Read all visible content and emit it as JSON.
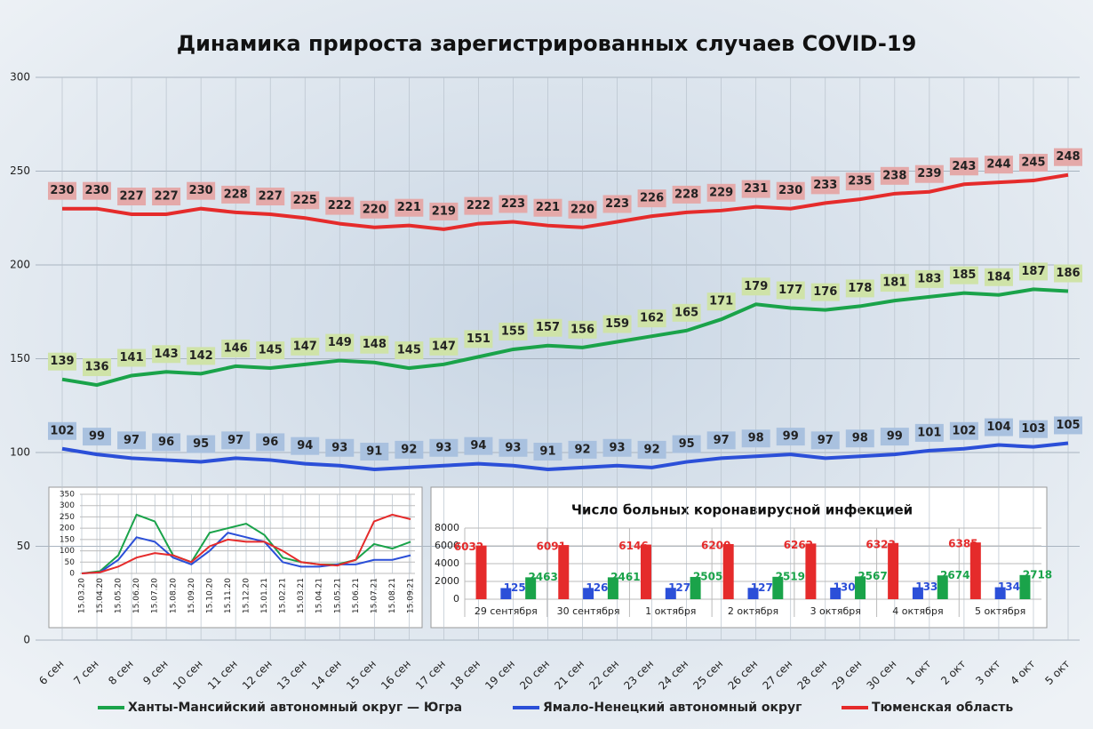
{
  "chart_data": [
    {
      "type": "line",
      "title": "Динамика прироста зарегистрированных случаев COVID-19",
      "categories": [
        "6 сен",
        "7 сен",
        "8 сен",
        "9 сен",
        "10 сен",
        "11 сен",
        "12 сен",
        "13 сен",
        "14 сен",
        "15 сен",
        "16 сен",
        "17 сен",
        "18 сен",
        "19 сен",
        "20 сен",
        "21 сен",
        "22 сен",
        "23 сен",
        "24 сен",
        "25 сен",
        "26 сен",
        "27 сен",
        "28 сен",
        "29 сен",
        "30 сен",
        "1 окт",
        "2 окт",
        "3 окт",
        "4 окт",
        "5 окт"
      ],
      "series": [
        {
          "name": "Ханты-Мансийский автономный округ — Югра",
          "color": "#1aa34a",
          "label_fill": "#cfe3a8",
          "values": [
            139,
            136,
            141,
            143,
            142,
            146,
            145,
            147,
            149,
            148,
            145,
            147,
            151,
            155,
            157,
            156,
            159,
            162,
            165,
            171,
            179,
            177,
            176,
            178,
            181,
            183,
            185,
            184,
            187,
            186
          ]
        },
        {
          "name": "Ямало-Ненецкий автономный округ",
          "color": "#2b4fd8",
          "label_fill": "#a9c1df",
          "values": [
            102,
            99,
            97,
            96,
            95,
            97,
            96,
            94,
            93,
            91,
            92,
            93,
            94,
            93,
            91,
            92,
            93,
            92,
            95,
            97,
            98,
            99,
            97,
            98,
            99,
            101,
            102,
            104,
            103,
            105
          ]
        },
        {
          "name": "Тюменская область",
          "color": "#e52b2b",
          "label_fill": "#e4a9a9",
          "values": [
            230,
            230,
            227,
            227,
            230,
            228,
            227,
            225,
            222,
            220,
            221,
            219,
            222,
            223,
            221,
            220,
            223,
            226,
            228,
            229,
            231,
            230,
            233,
            235,
            238,
            239,
            243,
            244,
            245,
            248
          ]
        }
      ],
      "ylim": [
        0,
        300
      ],
      "yticks": [
        0,
        50,
        100,
        150,
        200,
        250,
        300
      ],
      "grid": true
    },
    {
      "type": "line",
      "categories": [
        "15.03.20",
        "15.04.20",
        "15.05.20",
        "15.06.20",
        "15.07.20",
        "15.08.20",
        "15.09.20",
        "15.10.20",
        "15.11.20",
        "15.12.20",
        "15.01.21",
        "15.02.21",
        "15.03.21",
        "15.04.21",
        "15.05.21",
        "15.06.21",
        "15.07.21",
        "15.08.21",
        "15.09.21"
      ],
      "series": [
        {
          "color": "#1aa34a",
          "values": [
            0,
            10,
            80,
            260,
            230,
            80,
            50,
            180,
            200,
            220,
            170,
            70,
            50,
            40,
            40,
            60,
            130,
            110,
            140
          ]
        },
        {
          "color": "#2b4fd8",
          "values": [
            0,
            5,
            60,
            160,
            140,
            70,
            40,
            100,
            180,
            160,
            140,
            50,
            30,
            30,
            40,
            40,
            60,
            60,
            80
          ]
        },
        {
          "color": "#e52b2b",
          "values": [
            0,
            5,
            30,
            70,
            90,
            80,
            50,
            120,
            150,
            140,
            140,
            100,
            50,
            40,
            35,
            60,
            230,
            260,
            240
          ]
        }
      ],
      "ylim": [
        0,
        350
      ],
      "yticks": [
        0,
        50,
        100,
        150,
        200,
        250,
        300,
        350
      ],
      "grid": true
    },
    {
      "type": "bar",
      "title": "Число больных коронавирусной инфекцией",
      "categories": [
        "29 сентября",
        "30 сентября",
        "1 октября",
        "2 октября",
        "3 октября",
        "4 октября",
        "5 октября"
      ],
      "series": [
        {
          "color": "#e52b2b",
          "values": [
            6032,
            6091,
            6146,
            6200,
            6262,
            6323,
            6385
          ]
        },
        {
          "color": "#2b4fd8",
          "values": [
            1252,
            1266,
            1275,
            1275,
            1300,
            1337,
            1344
          ]
        },
        {
          "color": "#1aa34a",
          "values": [
            2463,
            2461,
            2505,
            2519,
            2567,
            2674,
            2718
          ]
        }
      ],
      "ylim": [
        0,
        8000
      ],
      "yticks": [
        0,
        2000,
        4000,
        6000,
        8000
      ],
      "grid": true
    }
  ]
}
